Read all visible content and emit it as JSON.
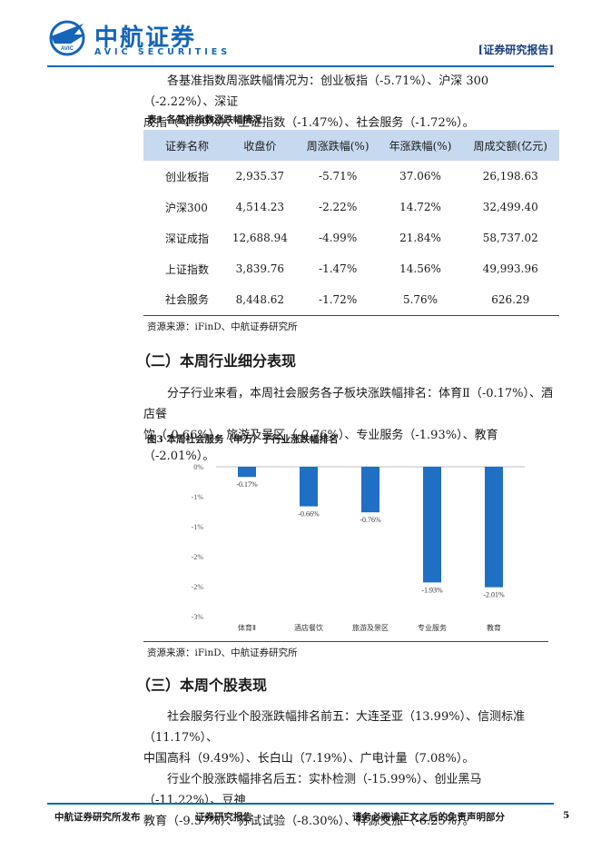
{
  "header": {
    "brand_cn": "中航证券",
    "brand_en": "AVIC SECURITIES",
    "logo_text": "AVIC",
    "report_tag": "[证券研究报告]",
    "brand_color": "#1565b8"
  },
  "intro": {
    "line1": "各基准指数周涨跌幅情况为：创业板指（-5.71%）、沪深 300（-2.22%）、深证",
    "line2": "成指（-4.99%）、上证指数（-1.47%）、社会服务（-1.72%）。"
  },
  "table1": {
    "caption": "表1  各基准指数涨跌幅情况",
    "headers": [
      "证券名称",
      "收盘价",
      "周涨跌幅(%)",
      "年涨跌幅(%)",
      "周成交额(亿元)"
    ],
    "rows": [
      [
        "创业板指",
        "2,935.37",
        "-5.71%",
        "37.06%",
        "26,198.63"
      ],
      [
        "沪深300",
        "4,514.23",
        "-2.22%",
        "14.72%",
        "32,499.40"
      ],
      [
        "深证成指",
        "12,688.94",
        "-4.99%",
        "21.84%",
        "58,737.02"
      ],
      [
        "上证指数",
        "3,839.76",
        "-1.47%",
        "14.56%",
        "49,993.96"
      ],
      [
        "社会服务",
        "8,448.62",
        "-1.72%",
        "5.76%",
        "626.29"
      ]
    ],
    "source": "资源来源：iFinD、中航证券研究所",
    "header_bg": "#c7d9ef"
  },
  "section2": {
    "title": "（二）本周行业细分表现",
    "line1": "分子行业来看，本周社会服务各子板块涨跌幅排名：体育Ⅱ（-0.17%）、酒店餐",
    "line2": "饮（-0.66%）、旅游及景区（-0.76%）、专业服务（-1.93%）、教育（-2.01%）。"
  },
  "figure3": {
    "caption": "图3  本周社会服务（申万）子行业涨跌幅排名",
    "source": "资源来源：iFinD、中航证券研究所"
  },
  "chart_data": {
    "type": "bar",
    "categories": [
      "体育Ⅱ",
      "酒店餐饮",
      "旅游及景区",
      "专业服务",
      "教育"
    ],
    "values": [
      -0.17,
      -0.66,
      -0.76,
      -1.93,
      -2.01
    ],
    "data_labels": [
      "-0.17%",
      "-0.66%",
      "-0.76%",
      "-1.93%",
      "-2.01%"
    ],
    "y_ticks": [
      "0%",
      "-1%",
      "-1%",
      "-2%",
      "-2%",
      "-3%"
    ],
    "ylim": [
      -2.5,
      0
    ],
    "bar_color": "#1f6fc5",
    "grid": false,
    "legend": "none"
  },
  "section3": {
    "title": "（三）本周个股表现",
    "line1": "社会服务行业个股涨跌幅排名前五：大连圣亚（13.99%）、信测标准（11.17%）、",
    "line2": "中国高科（9.49%）、长白山（7.19%）、广电计量（7.08%）。",
    "line3": "行业个股涨跌幅排名后五：实朴检测（-15.99%）、创业黑马（-11.22%）、豆神",
    "line4": "教育（-9.57%）、苏试试验（-8.30%）、祥源文旅（-6.25%）。"
  },
  "footer": {
    "publisher": "中航证券研究所发布",
    "doc_type": "证券研究报告",
    "disclaimer": "请务必阅读正文之后的免责声明部分",
    "page": "5"
  }
}
